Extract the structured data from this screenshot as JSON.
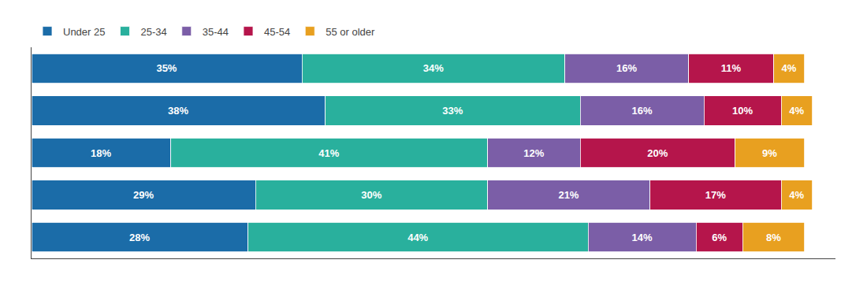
{
  "chart_data": {
    "type": "bar",
    "orientation": "horizontal",
    "stacked": true,
    "categories": [
      null,
      null,
      null,
      null,
      null
    ],
    "series": [
      {
        "name": "Under 25",
        "color": "#1b6ca8",
        "values": [
          35,
          38,
          18,
          29,
          28
        ],
        "value_labels": [
          "35%",
          "38%",
          "18%",
          "29%",
          "28%"
        ]
      },
      {
        "name": "25-34",
        "color": "#29b09d",
        "values": [
          34,
          33,
          41,
          30,
          44
        ],
        "value_labels": [
          "34%",
          "33%",
          "41%",
          "30%",
          "44%"
        ]
      },
      {
        "name": "35-44",
        "color": "#7b5ea7",
        "values": [
          16,
          16,
          12,
          21,
          14
        ],
        "value_labels": [
          "16%",
          "16%",
          "12%",
          "21%",
          "14%"
        ]
      },
      {
        "name": "45-54",
        "color": "#b5154b",
        "values": [
          11,
          10,
          20,
          17,
          6
        ],
        "value_labels": [
          "11%",
          "10%",
          "20%",
          "17%",
          "6%"
        ]
      },
      {
        "name": "55 or older",
        "color": "#e8a020",
        "values": [
          4,
          4,
          9,
          4,
          8
        ],
        "value_labels": [
          "4%",
          "4%",
          "9%",
          "4%",
          "8%"
        ]
      }
    ],
    "xlim": [
      0,
      104
    ],
    "xticks": [],
    "grid": false,
    "legend": "upper left",
    "data_labels": true,
    "tick_labels": false
  }
}
